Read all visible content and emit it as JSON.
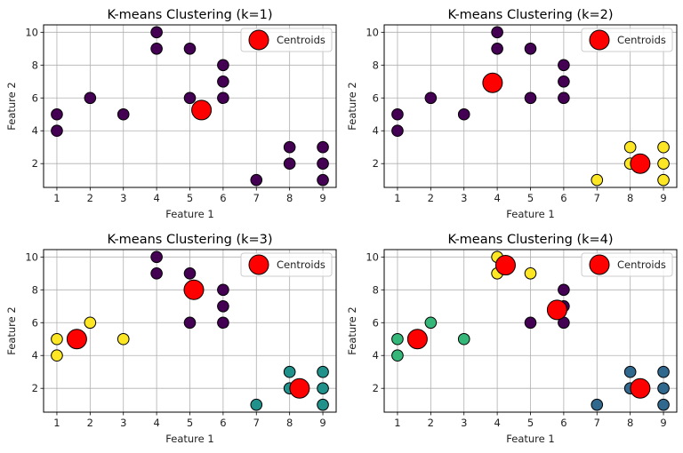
{
  "chart_data": [
    {
      "type": "scatter",
      "title": "K-means Clustering (k=1)",
      "xlabel": "Feature 1",
      "ylabel": "Feature 2",
      "xlim": [
        0.6,
        9.4
      ],
      "ylim": [
        0.55,
        10.45
      ],
      "xticks": [
        1,
        2,
        3,
        4,
        5,
        6,
        7,
        8,
        9
      ],
      "yticks": [
        2,
        4,
        6,
        8,
        10
      ],
      "grid": true,
      "legend": {
        "entries": [
          "Centroids"
        ],
        "placement": "top-right"
      },
      "cluster_colors": [
        "#440154"
      ],
      "points": [
        {
          "x": 1,
          "y": 5,
          "cluster": 0
        },
        {
          "x": 1,
          "y": 4,
          "cluster": 0
        },
        {
          "x": 2,
          "y": 6,
          "cluster": 0
        },
        {
          "x": 3,
          "y": 5,
          "cluster": 0
        },
        {
          "x": 4,
          "y": 10,
          "cluster": 0
        },
        {
          "x": 4,
          "y": 9,
          "cluster": 0
        },
        {
          "x": 5,
          "y": 9,
          "cluster": 0
        },
        {
          "x": 5,
          "y": 6,
          "cluster": 0
        },
        {
          "x": 6,
          "y": 8,
          "cluster": 0
        },
        {
          "x": 6,
          "y": 7,
          "cluster": 0
        },
        {
          "x": 6,
          "y": 6,
          "cluster": 0
        },
        {
          "x": 7,
          "y": 1,
          "cluster": 0
        },
        {
          "x": 8,
          "y": 3,
          "cluster": 0
        },
        {
          "x": 8,
          "y": 2,
          "cluster": 0
        },
        {
          "x": 9,
          "y": 3,
          "cluster": 0
        },
        {
          "x": 9,
          "y": 2,
          "cluster": 0
        },
        {
          "x": 9,
          "y": 1,
          "cluster": 0
        }
      ],
      "centroids": [
        {
          "x": 5.35,
          "y": 5.26
        }
      ]
    },
    {
      "type": "scatter",
      "title": "K-means Clustering (k=2)",
      "xlabel": "Feature 1",
      "ylabel": "Feature 2",
      "xlim": [
        0.6,
        9.4
      ],
      "ylim": [
        0.55,
        10.45
      ],
      "xticks": [
        1,
        2,
        3,
        4,
        5,
        6,
        7,
        8,
        9
      ],
      "yticks": [
        2,
        4,
        6,
        8,
        10
      ],
      "grid": true,
      "legend": {
        "entries": [
          "Centroids"
        ],
        "placement": "top-right"
      },
      "cluster_colors": [
        "#440154",
        "#fde725"
      ],
      "points": [
        {
          "x": 1,
          "y": 5,
          "cluster": 0
        },
        {
          "x": 1,
          "y": 4,
          "cluster": 0
        },
        {
          "x": 2,
          "y": 6,
          "cluster": 0
        },
        {
          "x": 3,
          "y": 5,
          "cluster": 0
        },
        {
          "x": 4,
          "y": 10,
          "cluster": 0
        },
        {
          "x": 4,
          "y": 9,
          "cluster": 0
        },
        {
          "x": 5,
          "y": 9,
          "cluster": 0
        },
        {
          "x": 5,
          "y": 6,
          "cluster": 0
        },
        {
          "x": 6,
          "y": 8,
          "cluster": 0
        },
        {
          "x": 6,
          "y": 7,
          "cluster": 0
        },
        {
          "x": 6,
          "y": 6,
          "cluster": 0
        },
        {
          "x": 7,
          "y": 1,
          "cluster": 1
        },
        {
          "x": 8,
          "y": 3,
          "cluster": 1
        },
        {
          "x": 8,
          "y": 2,
          "cluster": 1
        },
        {
          "x": 9,
          "y": 3,
          "cluster": 1
        },
        {
          "x": 9,
          "y": 2,
          "cluster": 1
        },
        {
          "x": 9,
          "y": 1,
          "cluster": 1
        }
      ],
      "centroids": [
        {
          "x": 3.86,
          "y": 6.92
        },
        {
          "x": 8.3,
          "y": 2.0
        }
      ]
    },
    {
      "type": "scatter",
      "title": "K-means Clustering (k=3)",
      "xlabel": "Feature 1",
      "ylabel": "Feature 2",
      "xlim": [
        0.6,
        9.4
      ],
      "ylim": [
        0.55,
        10.45
      ],
      "xticks": [
        1,
        2,
        3,
        4,
        5,
        6,
        7,
        8,
        9
      ],
      "yticks": [
        2,
        4,
        6,
        8,
        10
      ],
      "grid": true,
      "legend": {
        "entries": [
          "Centroids"
        ],
        "placement": "top-right"
      },
      "cluster_colors": [
        "#440154",
        "#21918c",
        "#fde725"
      ],
      "points": [
        {
          "x": 1,
          "y": 5,
          "cluster": 2
        },
        {
          "x": 1,
          "y": 4,
          "cluster": 2
        },
        {
          "x": 2,
          "y": 6,
          "cluster": 2
        },
        {
          "x": 3,
          "y": 5,
          "cluster": 2
        },
        {
          "x": 4,
          "y": 10,
          "cluster": 0
        },
        {
          "x": 4,
          "y": 9,
          "cluster": 0
        },
        {
          "x": 5,
          "y": 9,
          "cluster": 0
        },
        {
          "x": 5,
          "y": 6,
          "cluster": 0
        },
        {
          "x": 6,
          "y": 8,
          "cluster": 0
        },
        {
          "x": 6,
          "y": 7,
          "cluster": 0
        },
        {
          "x": 6,
          "y": 6,
          "cluster": 0
        },
        {
          "x": 7,
          "y": 1,
          "cluster": 1
        },
        {
          "x": 8,
          "y": 3,
          "cluster": 1
        },
        {
          "x": 8,
          "y": 2,
          "cluster": 1
        },
        {
          "x": 9,
          "y": 3,
          "cluster": 1
        },
        {
          "x": 9,
          "y": 2,
          "cluster": 1
        },
        {
          "x": 9,
          "y": 1,
          "cluster": 1
        }
      ],
      "centroids": [
        {
          "x": 1.6,
          "y": 5.0
        },
        {
          "x": 5.12,
          "y": 8.0
        },
        {
          "x": 8.3,
          "y": 2.0
        }
      ]
    },
    {
      "type": "scatter",
      "title": "K-means Clustering (k=4)",
      "xlabel": "Feature 1",
      "ylabel": "Feature 2",
      "xlim": [
        0.6,
        9.4
      ],
      "ylim": [
        0.55,
        10.45
      ],
      "xticks": [
        1,
        2,
        3,
        4,
        5,
        6,
        7,
        8,
        9
      ],
      "yticks": [
        2,
        4,
        6,
        8,
        10
      ],
      "grid": true,
      "legend": {
        "entries": [
          "Centroids"
        ],
        "placement": "top-right"
      },
      "cluster_colors": [
        "#440154",
        "#31688e",
        "#35b779",
        "#fde725"
      ],
      "points": [
        {
          "x": 1,
          "y": 5,
          "cluster": 2
        },
        {
          "x": 1,
          "y": 4,
          "cluster": 2
        },
        {
          "x": 2,
          "y": 6,
          "cluster": 2
        },
        {
          "x": 3,
          "y": 5,
          "cluster": 2
        },
        {
          "x": 4,
          "y": 10,
          "cluster": 3
        },
        {
          "x": 4,
          "y": 9,
          "cluster": 3
        },
        {
          "x": 5,
          "y": 9,
          "cluster": 3
        },
        {
          "x": 5,
          "y": 6,
          "cluster": 0
        },
        {
          "x": 6,
          "y": 8,
          "cluster": 0
        },
        {
          "x": 6,
          "y": 7,
          "cluster": 0
        },
        {
          "x": 6,
          "y": 6,
          "cluster": 0
        },
        {
          "x": 7,
          "y": 1,
          "cluster": 1
        },
        {
          "x": 8,
          "y": 3,
          "cluster": 1
        },
        {
          "x": 8,
          "y": 2,
          "cluster": 1
        },
        {
          "x": 9,
          "y": 3,
          "cluster": 1
        },
        {
          "x": 9,
          "y": 2,
          "cluster": 1
        },
        {
          "x": 9,
          "y": 1,
          "cluster": 1
        }
      ],
      "centroids": [
        {
          "x": 4.25,
          "y": 9.5
        },
        {
          "x": 5.8,
          "y": 6.78
        },
        {
          "x": 1.6,
          "y": 5.0
        },
        {
          "x": 8.3,
          "y": 2.0
        }
      ]
    }
  ],
  "colors": {
    "centroid_fill": "#ff0000",
    "marker_edge": "#000000",
    "grid": "#b0b0b0",
    "legend_border": "#cccccc"
  }
}
